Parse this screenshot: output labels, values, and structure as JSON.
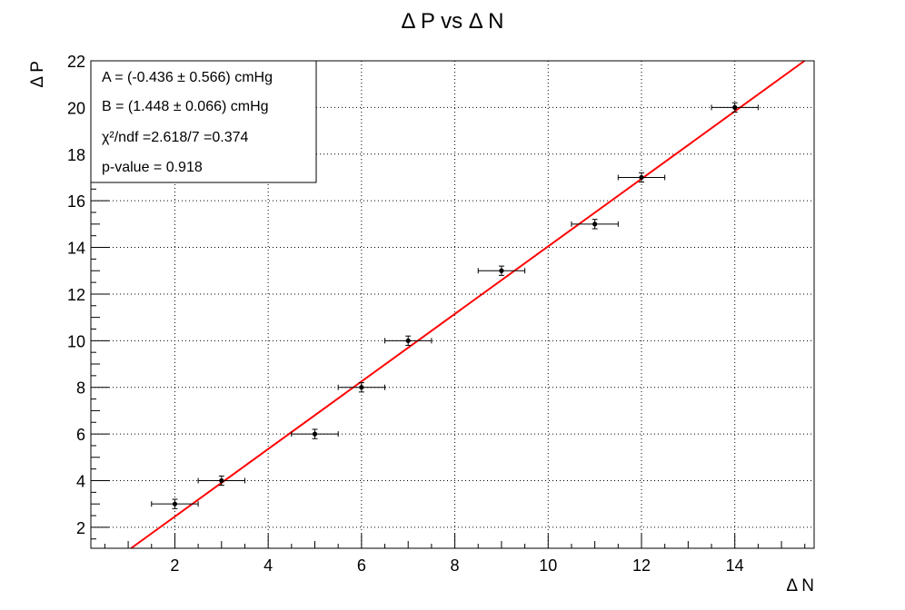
{
  "chart_data": {
    "type": "scatter",
    "title": "Δ P vs Δ N",
    "xlabel": "Δ N",
    "ylabel": "Δ P",
    "xlim": [
      0.2,
      15.7
    ],
    "ylim": [
      1.1,
      22
    ],
    "xticks": [
      2,
      4,
      6,
      8,
      10,
      12,
      14
    ],
    "yticks": [
      2,
      4,
      6,
      8,
      10,
      12,
      14,
      16,
      18,
      20,
      22
    ],
    "grid": true,
    "points": [
      {
        "x": 2,
        "y": 3,
        "xerr": 0.5,
        "yerr": 0.2
      },
      {
        "x": 3,
        "y": 4,
        "xerr": 0.5,
        "yerr": 0.2
      },
      {
        "x": 5,
        "y": 6,
        "xerr": 0.5,
        "yerr": 0.2
      },
      {
        "x": 6,
        "y": 8,
        "xerr": 0.5,
        "yerr": 0.2
      },
      {
        "x": 7,
        "y": 10,
        "xerr": 0.5,
        "yerr": 0.2
      },
      {
        "x": 9,
        "y": 13,
        "xerr": 0.5,
        "yerr": 0.2
      },
      {
        "x": 11,
        "y": 15,
        "xerr": 0.5,
        "yerr": 0.2
      },
      {
        "x": 12,
        "y": 17,
        "xerr": 0.5,
        "yerr": 0.2
      },
      {
        "x": 14,
        "y": 20,
        "xerr": 0.5,
        "yerr": 0.2
      }
    ],
    "fit": {
      "intercept": -0.436,
      "slope": 1.448,
      "x_range": [
        1.0,
        15.5
      ],
      "color": "#ff0000"
    },
    "stats_box": {
      "placement": "top-left",
      "lines": [
        "A = (-0.436 ± 0.566) cmHg",
        "B = (1.448 ± 0.066) cmHg",
        "χ²/ndf =2.618/7 =0.374",
        "p-value = 0.918"
      ]
    }
  }
}
